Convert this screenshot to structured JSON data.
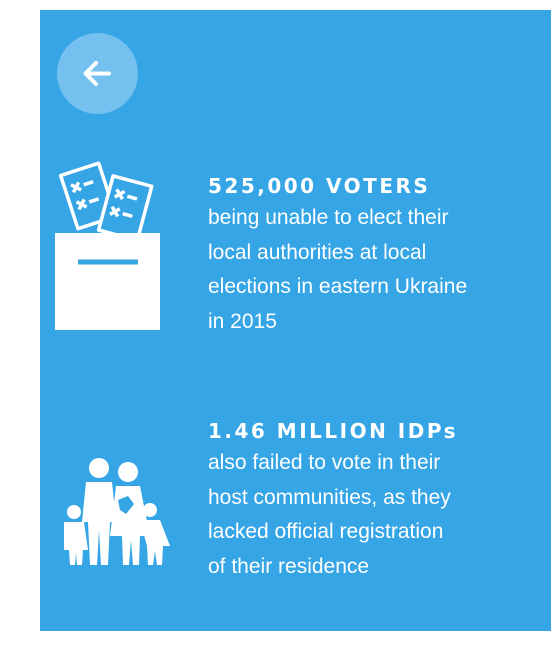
{
  "back_button": {
    "label": "←"
  },
  "items": [
    {
      "heading": "525,000 VOTERS",
      "lines": [
        "being unable to elect their",
        "local authorities at local",
        "elections in eastern Ukraine",
        "in 2015"
      ]
    },
    {
      "heading": "1.46 MILLION IDPs",
      "lines": [
        "also failed to vote in their",
        "host communities, as they",
        "lacked official registration",
        "of their residence"
      ]
    }
  ]
}
